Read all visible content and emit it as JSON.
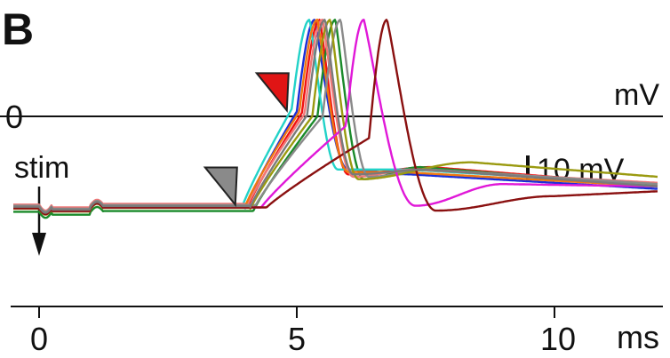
{
  "panel_label": "B",
  "chart_data": {
    "type": "line",
    "xlabel": "ms",
    "ylabel": "mV",
    "xlim": [
      -0.5,
      12
    ],
    "ylim": [
      -45,
      45
    ],
    "x_ticks": [
      0,
      5,
      10
    ],
    "x_tick_labels": [
      "0",
      "5",
      "10"
    ],
    "zero_line_label": "0",
    "y_scale_bar": {
      "value": 10,
      "label": "10 mV"
    },
    "stimulus": {
      "x": 0,
      "label": "stim"
    },
    "annotations": [
      {
        "shape": "triangle",
        "color": "#e01515",
        "x": 4.6,
        "y": 12
      },
      {
        "shape": "triangle",
        "color": "#8a8a8a",
        "x": 3.6,
        "y": -27
      }
    ],
    "grid": false,
    "legend": "none",
    "series": [
      {
        "color": "#1a2ed8",
        "peak": 5.35,
        "onset": 4.0,
        "base": -38,
        "trough": -22,
        "trough_t": 6.0,
        "hump": -24,
        "hump_t": 7.2,
        "end": -30,
        "shoulder": 2
      },
      {
        "color": "#f01010",
        "peak": 5.45,
        "onset": 4.05,
        "base": -37.5,
        "trough": -24,
        "trough_t": 6.0,
        "hump": -21,
        "hump_t": 7.6,
        "end": -28.5,
        "shoulder": 1.5
      },
      {
        "color": "#1a8a2a",
        "peak": 5.75,
        "onset": 4.15,
        "base": -39.5,
        "trough": -26,
        "trough_t": 6.3,
        "hump": -21,
        "hump_t": 7.4,
        "end": -29,
        "shoulder": 0
      },
      {
        "color": "#22d2c8",
        "peak": 5.25,
        "onset": 3.95,
        "base": -37,
        "trough": -22,
        "trough_t": 5.8,
        "hump": -22,
        "hump_t": 7.1,
        "end": -28,
        "shoulder": 3
      },
      {
        "color": "#f07878",
        "peak": 5.5,
        "onset": 4.05,
        "base": -36.5,
        "trough": -25,
        "trough_t": 6.1,
        "hump": -22,
        "hump_t": 7.3,
        "end": -27.5,
        "shoulder": 1
      },
      {
        "color": "#f07810",
        "peak": 5.4,
        "onset": 4.0,
        "base": -37.2,
        "trough": -23,
        "trough_t": 6.0,
        "hump": -23,
        "hump_t": 7.0,
        "end": -29,
        "shoulder": 2
      },
      {
        "color": "#8a8a8a",
        "peak": 5.85,
        "onset": 4.2,
        "base": -37,
        "trough": -25,
        "trough_t": 6.4,
        "hump": -22,
        "hump_t": 7.6,
        "end": -28,
        "shoulder": 0
      },
      {
        "color": "#9a9a10",
        "peak": 5.65,
        "onset": 4.1,
        "base": -38.2,
        "trough": -26,
        "trough_t": 6.2,
        "hump": -19,
        "hump_t": 8.4,
        "end": -25,
        "shoulder": 0
      },
      {
        "color": "#e018d8",
        "peak": 6.3,
        "onset": 4.3,
        "base": -38,
        "trough": -37,
        "trough_t": 7.3,
        "hump": -28,
        "hump_t": 9.0,
        "end": -29,
        "shoulder": -4
      },
      {
        "color": "#8a1010",
        "peak": 6.75,
        "onset": 4.4,
        "base": -38,
        "trough": -39,
        "trough_t": 7.7,
        "hump": -33,
        "hump_t": 10.0,
        "end": -31,
        "shoulder": -9
      },
      {
        "color": "#7a7a7a",
        "peak": 5.55,
        "onset": 4.1,
        "base": -37.4,
        "trough": -24,
        "trough_t": 6.1,
        "hump": -22,
        "hump_t": 7.5,
        "end": -29,
        "shoulder": 0.5
      }
    ]
  }
}
